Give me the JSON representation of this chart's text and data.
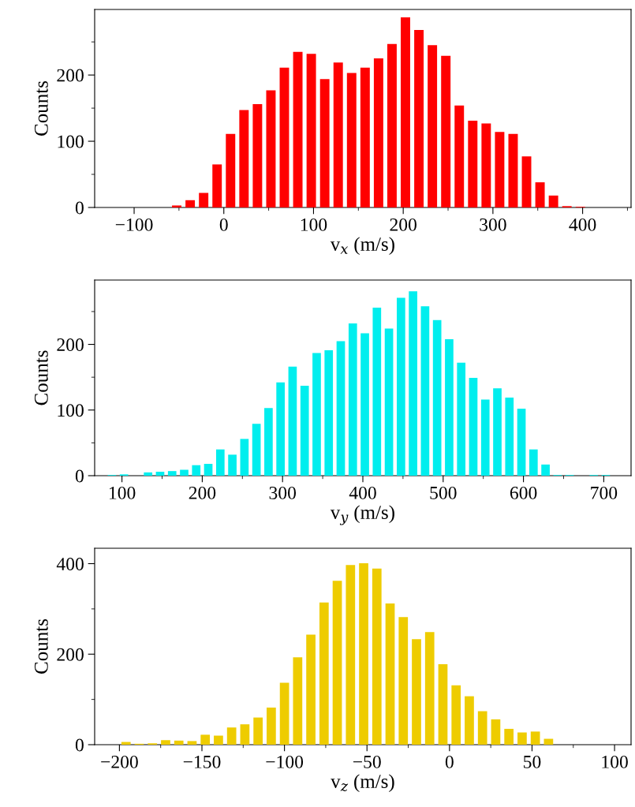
{
  "chart_data": [
    {
      "type": "histogram",
      "xlabel": "v$_{x}$ (m/s)",
      "ylabel": "Counts",
      "color": "#ff0000",
      "xlim": [
        -144,
        454
      ],
      "xticks": [
        -100,
        0,
        100,
        200,
        300,
        400
      ],
      "ylim": [
        0,
        299
      ],
      "yticks": [
        0,
        100,
        200
      ],
      "bins": [
        -60,
        -45,
        -30,
        -15,
        0,
        15,
        30,
        45,
        60,
        75,
        90,
        105,
        120,
        135,
        150,
        165,
        180,
        195,
        210,
        225,
        240,
        255,
        270,
        285,
        300,
        315,
        330,
        345,
        360,
        375,
        390,
        405
      ],
      "values": [
        3,
        11,
        22,
        65,
        111,
        147,
        156,
        177,
        211,
        235,
        232,
        194,
        219,
        203,
        211,
        225,
        247,
        287,
        268,
        245,
        229,
        154,
        131,
        127,
        114,
        111,
        77,
        38,
        18,
        2,
        1
      ]
    },
    {
      "type": "histogram",
      "xlabel": "v$_{y}$ (m/s)",
      "ylabel": "Counts",
      "color": "#00eeee",
      "xlim": [
        66,
        734
      ],
      "xticks": [
        100,
        200,
        300,
        400,
        500,
        600,
        700
      ],
      "ylim": [
        0,
        298
      ],
      "yticks": [
        0,
        100,
        200
      ],
      "bins": [
        80,
        95,
        110,
        125,
        140,
        155,
        170,
        185,
        200,
        215,
        230,
        245,
        260,
        275,
        290,
        305,
        320,
        335,
        350,
        365,
        380,
        395,
        410,
        425,
        440,
        455,
        470,
        485,
        500,
        515,
        530,
        545,
        560,
        575,
        590,
        605,
        620,
        635,
        650,
        665,
        680,
        695,
        710
      ],
      "values": [
        1,
        2,
        0,
        5,
        6,
        7,
        9,
        16,
        18,
        40,
        32,
        56,
        79,
        103,
        142,
        166,
        137,
        187,
        191,
        205,
        232,
        217,
        256,
        224,
        271,
        281,
        258,
        237,
        208,
        172,
        149,
        116,
        133,
        119,
        102,
        40,
        17,
        1,
        1,
        0,
        1,
        1
      ]
    },
    {
      "type": "histogram",
      "xlabel": "v$_{z}$ (m/s)",
      "ylabel": "Counts",
      "color": "#eecc00",
      "xlim": [
        -215,
        110
      ],
      "xticks": [
        -200,
        -150,
        -100,
        -50,
        0,
        50,
        100
      ],
      "ylim": [
        0,
        434
      ],
      "yticks": [
        0,
        200,
        400
      ],
      "bins": [
        -200,
        -192,
        -184,
        -176,
        -168,
        -160,
        -152,
        -144,
        -136,
        -128,
        -120,
        -112,
        -104,
        -96,
        -88,
        -80,
        -72,
        -64,
        -56,
        -48,
        -40,
        -32,
        -24,
        -16,
        -8,
        0,
        8,
        16,
        24,
        32,
        40,
        48,
        56,
        64
      ],
      "values": [
        6,
        2,
        3,
        10,
        9,
        8,
        22,
        20,
        38,
        45,
        60,
        82,
        137,
        193,
        243,
        314,
        362,
        397,
        401,
        389,
        312,
        282,
        233,
        249,
        178,
        131,
        107,
        74,
        56,
        35,
        27,
        29,
        13
      ]
    }
  ]
}
